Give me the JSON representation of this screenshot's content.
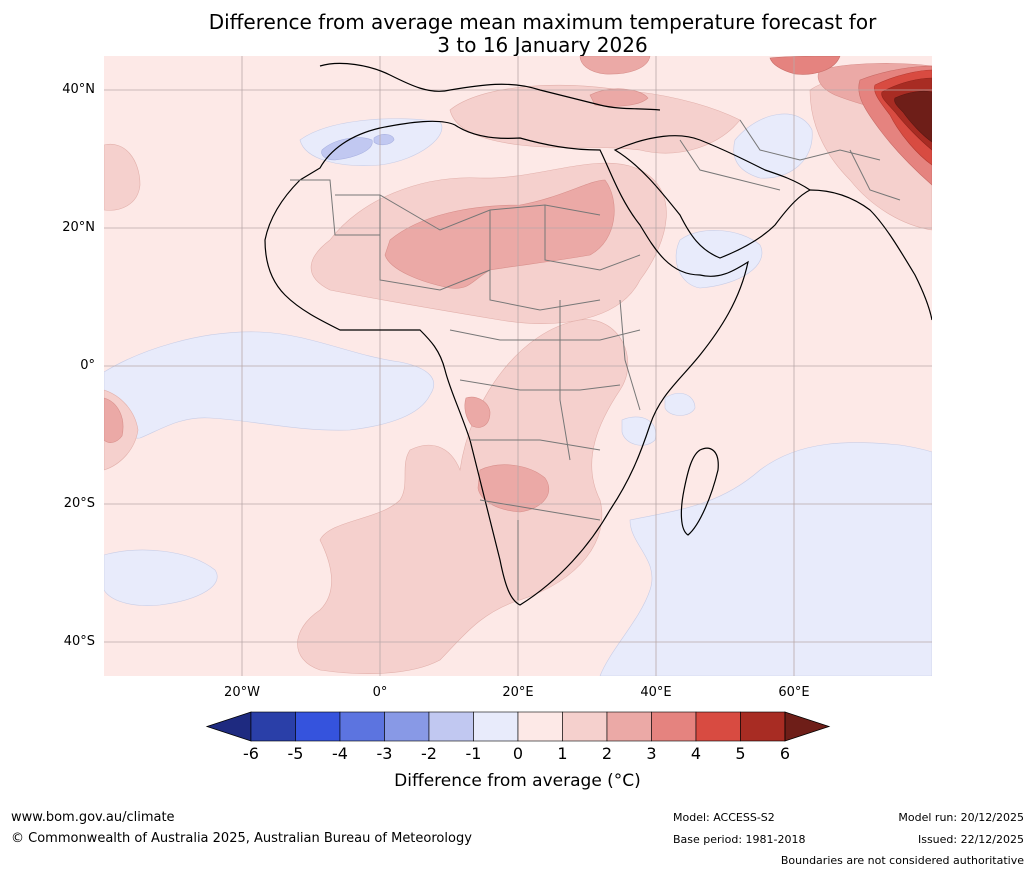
{
  "title": {
    "line1": "Difference from average mean maximum temperature forecast for",
    "line2": "3 to 16 January 2026"
  },
  "map": {
    "lat_labels": [
      "40°N",
      "20°N",
      "0°",
      "20°S",
      "40°S"
    ],
    "lon_labels": [
      "20°W",
      "0°",
      "20°E",
      "40°E",
      "60°E"
    ],
    "extent": {
      "lon": [
        -40,
        80
      ],
      "lat": [
        -45,
        45
      ]
    }
  },
  "colorbar": {
    "title": "Difference from average (°C)",
    "ticks": [
      "-6",
      "-5",
      "-4",
      "-3",
      "-2",
      "-1",
      "0",
      "1",
      "2",
      "3",
      "4",
      "5",
      "6"
    ],
    "colors": [
      "#2a3fa8",
      "#3553dd",
      "#5c74e0",
      "#8899e6",
      "#c1c8f1",
      "#e8ebfb",
      "#fde9e7",
      "#f5d0cd",
      "#eba9a6",
      "#e5837f",
      "#d84b41",
      "#a82c23"
    ],
    "under_color": "#1e2a80",
    "over_color": "#6e1e18"
  },
  "footer": {
    "url": "www.bom.gov.au/climate",
    "copyright": "© Commonwealth of Australia 2025, Australian Bureau of Meteorology",
    "model": "Model: ACCESS-S2",
    "base_period": "Base period: 1981-2018",
    "model_run": "Model run: 20/12/2025",
    "issued": "Issued: 22/12/2025",
    "disclaimer": "Boundaries are not considered authoritative"
  }
}
